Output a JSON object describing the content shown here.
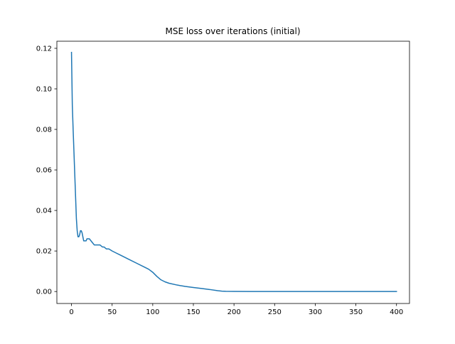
{
  "chart_data": {
    "type": "line",
    "title": "MSE loss over iterations (initial)",
    "xlabel": "",
    "ylabel": "",
    "xlim": [
      -18,
      416
    ],
    "ylim": [
      -0.0059,
      0.1235
    ],
    "x_ticks": [
      0,
      50,
      100,
      150,
      200,
      250,
      300,
      350,
      400
    ],
    "y_ticks": [
      0.0,
      0.02,
      0.04,
      0.06,
      0.08,
      0.1,
      0.12
    ],
    "y_tick_labels": [
      "0.00",
      "0.02",
      "0.04",
      "0.06",
      "0.08",
      "0.10",
      "0.12"
    ],
    "grid": false,
    "legend": "none",
    "series": [
      {
        "color": "#1f77b4",
        "x": [
          0,
          1,
          2,
          3,
          4,
          5,
          6,
          7,
          8,
          9,
          10,
          11,
          12,
          13,
          14,
          15,
          16,
          17,
          18,
          19,
          20,
          22,
          24,
          26,
          28,
          30,
          32,
          35,
          38,
          40,
          43,
          46,
          50,
          55,
          60,
          70,
          80,
          90,
          95,
          100,
          105,
          110,
          115,
          120,
          130,
          140,
          150,
          160,
          170,
          180,
          185,
          190,
          200,
          220,
          250,
          300,
          350,
          400
        ],
        "y": [
          0.118,
          0.092,
          0.08,
          0.069,
          0.058,
          0.047,
          0.036,
          0.03,
          0.027,
          0.027,
          0.028,
          0.03,
          0.03,
          0.029,
          0.027,
          0.025,
          0.025,
          0.025,
          0.025,
          0.026,
          0.026,
          0.026,
          0.025,
          0.024,
          0.023,
          0.023,
          0.023,
          0.023,
          0.022,
          0.022,
          0.021,
          0.021,
          0.02,
          0.019,
          0.018,
          0.016,
          0.014,
          0.012,
          0.011,
          0.0095,
          0.0075,
          0.0058,
          0.0048,
          0.0041,
          0.0032,
          0.0025,
          0.002,
          0.0015,
          0.001,
          0.0004,
          0.0002,
          0.0001,
          5e-05,
          2e-05,
          0.0,
          0.0,
          0.0,
          0.0
        ]
      }
    ]
  }
}
